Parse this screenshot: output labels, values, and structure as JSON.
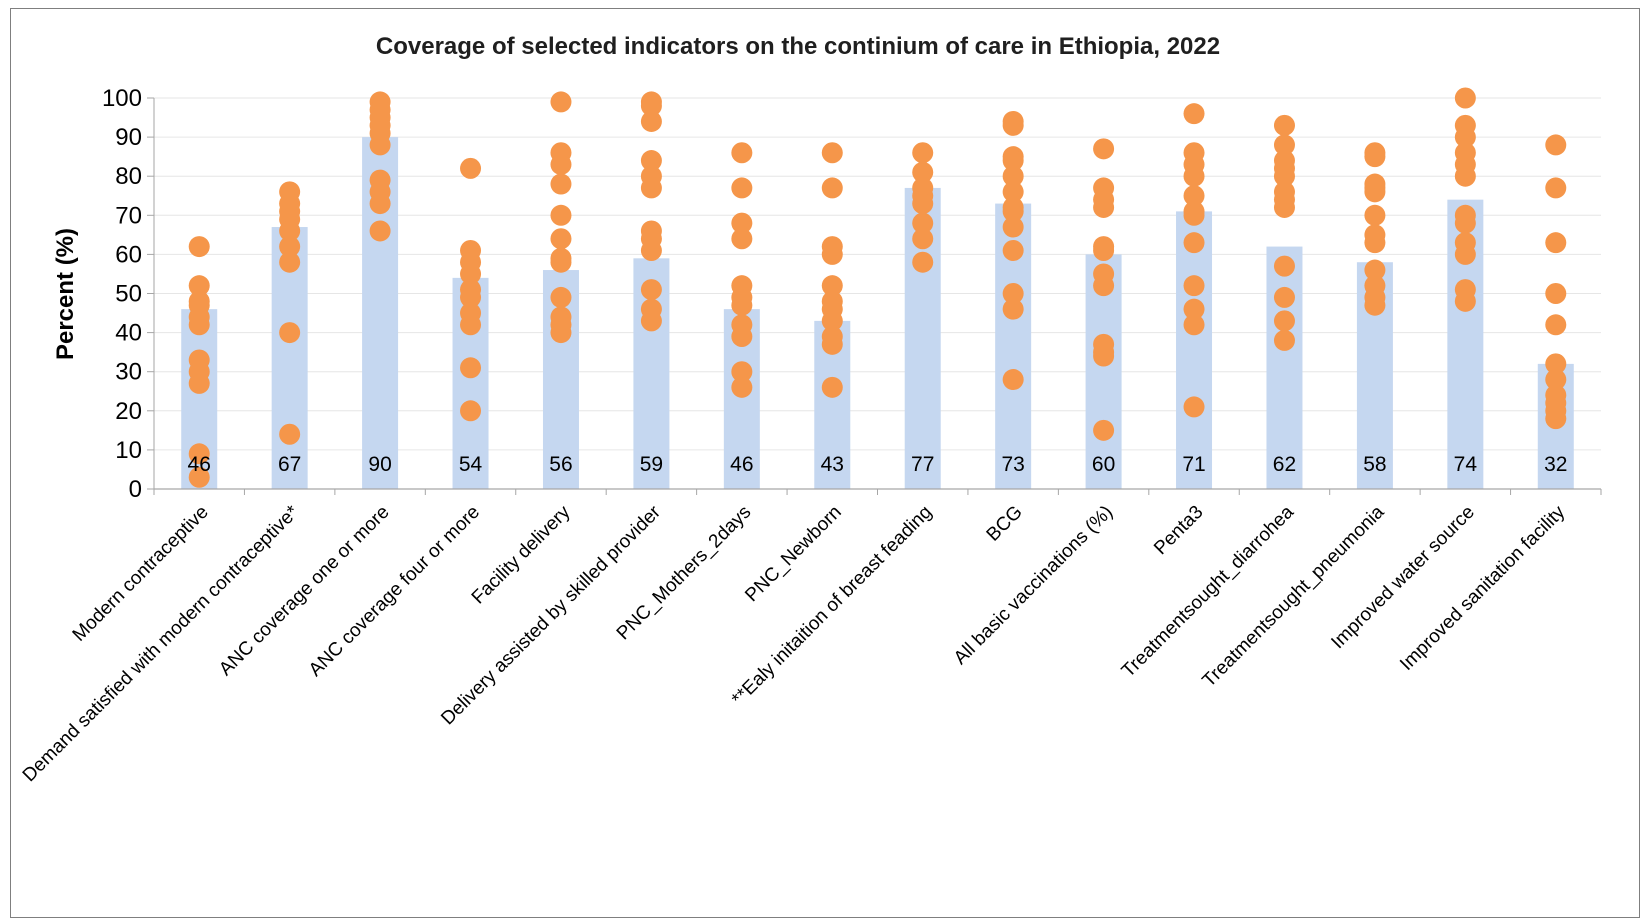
{
  "chart_data": {
    "type": "bar",
    "title": "Coverage of selected indicators on the continium of care in Ethiopia, 2022",
    "ylabel": "Percent (%)",
    "xlabel": "",
    "ylim": [
      0,
      100
    ],
    "yticks": [
      0,
      10,
      20,
      30,
      40,
      50,
      60,
      70,
      80,
      90,
      100
    ],
    "grid": true,
    "categories": [
      "Modern contraceptive",
      "Demand satisfied with modern contraceptive*",
      "ANC coverage one or more",
      "ANC coverage four or more",
      "Facility delivery",
      "Delivery assisted by skilled provider",
      "PNC_Mothers_2days",
      "PNC_Newborn",
      "**Ealy initaition of breast feading",
      "BCG",
      "All basic vaccinations (%)",
      "Penta3",
      "Treatmentsought_diarrohea",
      "Treatmentsought_pneumonia",
      "Improved water source",
      "Improved sanitation facility"
    ],
    "values": [
      46,
      67,
      90,
      54,
      56,
      59,
      46,
      43,
      77,
      73,
      60,
      71,
      62,
      58,
      74,
      32
    ],
    "points": [
      [
        62,
        52,
        48,
        47,
        44,
        42,
        33,
        30,
        27,
        9,
        3
      ],
      [
        76,
        73,
        71,
        69,
        66,
        62,
        58,
        40,
        14
      ],
      [
        99,
        97,
        95,
        93,
        91,
        88,
        79,
        76,
        73,
        66
      ],
      [
        82,
        61,
        58,
        55,
        51,
        49,
        45,
        42,
        31,
        20
      ],
      [
        99,
        86,
        83,
        78,
        70,
        64,
        59,
        58,
        49,
        44,
        42,
        40
      ],
      [
        99,
        98,
        94,
        84,
        80,
        77,
        66,
        64,
        61,
        51,
        46,
        43
      ],
      [
        86,
        77,
        68,
        64,
        52,
        49,
        47,
        42,
        39,
        30,
        26
      ],
      [
        86,
        77,
        62,
        60,
        52,
        48,
        46,
        43,
        39,
        37,
        26
      ],
      [
        86,
        81,
        77,
        75,
        73,
        68,
        64,
        58
      ],
      [
        94,
        93,
        85,
        84,
        80,
        76,
        72,
        71,
        67,
        61,
        50,
        46,
        28
      ],
      [
        87,
        77,
        74,
        72,
        62,
        61,
        55,
        52,
        37,
        35,
        34,
        15
      ],
      [
        96,
        86,
        83,
        80,
        75,
        71,
        70,
        63,
        52,
        46,
        42,
        21
      ],
      [
        93,
        88,
        84,
        82,
        80,
        76,
        74,
        72,
        57,
        49,
        43,
        38
      ],
      [
        86,
        85,
        78,
        77,
        76,
        70,
        65,
        63,
        56,
        52,
        49,
        47
      ],
      [
        100,
        93,
        90,
        86,
        83,
        80,
        70,
        68,
        63,
        60,
        51,
        48
      ],
      [
        88,
        77,
        63,
        50,
        42,
        32,
        28,
        24,
        22,
        20,
        18
      ]
    ],
    "colors": {
      "bar": "#c5d7f0",
      "point": "#f5964a",
      "grid": "#e6e6e6",
      "axis": "#a6a6a6"
    }
  }
}
